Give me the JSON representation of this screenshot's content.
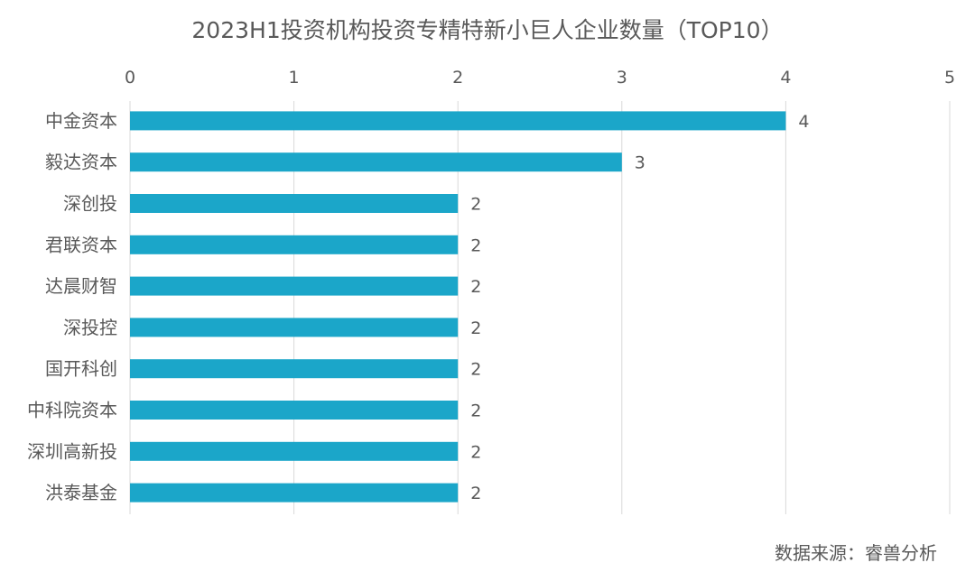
{
  "chart_data": {
    "type": "bar",
    "orientation": "horizontal",
    "title": "2023H1投资机构投资专精特新小巨人企业数量（TOP10）",
    "categories": [
      "中金资本",
      "毅达资本",
      "深创投",
      "君联资本",
      "达晨财智",
      "深投控",
      "国开科创",
      "中科院资本",
      "深圳高新投",
      "洪泰基金"
    ],
    "values": [
      4,
      3,
      2,
      2,
      2,
      2,
      2,
      2,
      2,
      2
    ],
    "xlim": [
      0,
      5
    ],
    "xticks": [
      "0",
      "1",
      "2",
      "3",
      "4",
      "5"
    ],
    "x_axis_position": "top",
    "grid": true,
    "data_labels": true,
    "bar_color": "#1ba6c9",
    "grid_color": "#d9d9d9"
  },
  "source": "数据来源：睿兽分析"
}
